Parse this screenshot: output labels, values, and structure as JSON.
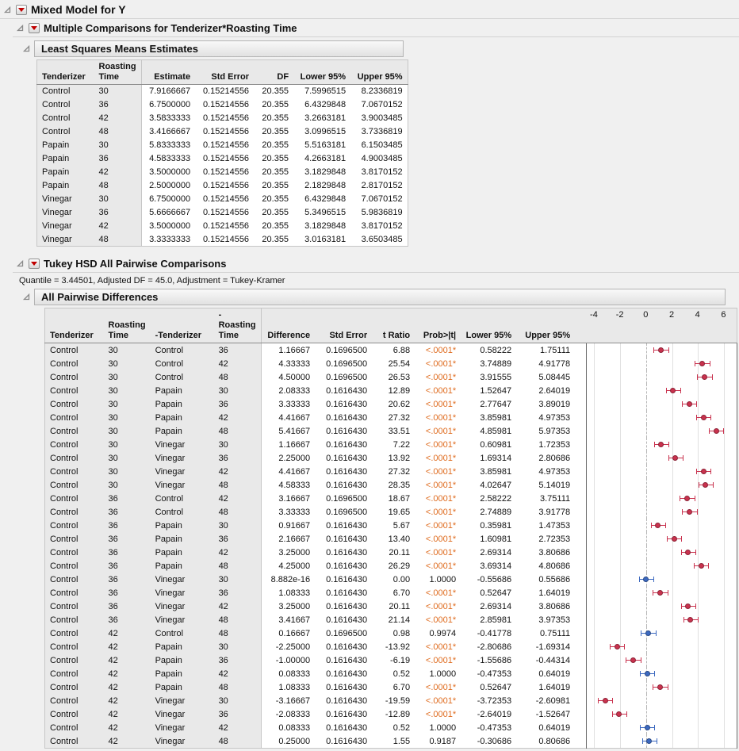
{
  "outline": {
    "mixed_model_title": "Mixed Model for Y",
    "multiple_comparisons_title": "Multiple Comparisons for Tenderizer*Roasting Time",
    "lsmeans_title": "Least Squares Means Estimates",
    "tukey_title": "Tukey HSD All Pairwise Comparisons",
    "tukey_note": "Quantile = 3.44501, Adjusted DF = 45.0, Adjustment = Tukey-Kramer",
    "pairwise_title": "All Pairwise Differences"
  },
  "colors": {
    "significant_ci": "#c9324e",
    "nonsignificant_ci": "#3c69c0",
    "significant_pvalue_text": "#df6b1e",
    "red_triangle": "#c00000",
    "header_bg": "#e9e9e9"
  },
  "lsmeans_table": {
    "headers": [
      "Tenderizer",
      "Roasting\nTime",
      "Estimate",
      "Std Error",
      "DF",
      "Lower 95%",
      "Upper 95%"
    ],
    "col_classes": [
      "lbl",
      "lbl",
      "num sep",
      "num",
      "num",
      "num",
      "num"
    ],
    "rows": [
      [
        "Control",
        "30",
        "7.9166667",
        "0.15214556",
        "20.355",
        "7.5996515",
        "8.2336819"
      ],
      [
        "Control",
        "36",
        "6.7500000",
        "0.15214556",
        "20.355",
        "6.4329848",
        "7.0670152"
      ],
      [
        "Control",
        "42",
        "3.5833333",
        "0.15214556",
        "20.355",
        "3.2663181",
        "3.9003485"
      ],
      [
        "Control",
        "48",
        "3.4166667",
        "0.15214556",
        "20.355",
        "3.0996515",
        "3.7336819"
      ],
      [
        "Papain",
        "30",
        "5.8333333",
        "0.15214556",
        "20.355",
        "5.5163181",
        "6.1503485"
      ],
      [
        "Papain",
        "36",
        "4.5833333",
        "0.15214556",
        "20.355",
        "4.2663181",
        "4.9003485"
      ],
      [
        "Papain",
        "42",
        "3.5000000",
        "0.15214556",
        "20.355",
        "3.1829848",
        "3.8170152"
      ],
      [
        "Papain",
        "48",
        "2.5000000",
        "0.15214556",
        "20.355",
        "2.1829848",
        "2.8170152"
      ],
      [
        "Vinegar",
        "30",
        "6.7500000",
        "0.15214556",
        "20.355",
        "6.4329848",
        "7.0670152"
      ],
      [
        "Vinegar",
        "36",
        "5.6666667",
        "0.15214556",
        "20.355",
        "5.3496515",
        "5.9836819"
      ],
      [
        "Vinegar",
        "42",
        "3.5000000",
        "0.15214556",
        "20.355",
        "3.1829848",
        "3.8170152"
      ],
      [
        "Vinegar",
        "48",
        "3.3333333",
        "0.15214556",
        "20.355",
        "3.0163181",
        "3.6503485"
      ]
    ]
  },
  "pairwise_table": {
    "headers": [
      "Tenderizer",
      "Roasting\nTime",
      "-Tenderizer",
      "-Roasting\nTime",
      "Difference",
      "Std Error",
      "t Ratio",
      "Prob>|t|",
      "Lower 95%",
      "Upper 95%"
    ],
    "col_classes": [
      "lbl",
      "lbl",
      "lbl",
      "lbl",
      "num sep",
      "num",
      "num",
      "num prob",
      "num",
      "num"
    ],
    "rows": [
      [
        "Control",
        "30",
        "Control",
        "36",
        "1.16667",
        "0.1696500",
        "6.88",
        "<.0001*",
        "0.58222",
        "1.75111"
      ],
      [
        "Control",
        "30",
        "Control",
        "42",
        "4.33333",
        "0.1696500",
        "25.54",
        "<.0001*",
        "3.74889",
        "4.91778"
      ],
      [
        "Control",
        "30",
        "Control",
        "48",
        "4.50000",
        "0.1696500",
        "26.53",
        "<.0001*",
        "3.91555",
        "5.08445"
      ],
      [
        "Control",
        "30",
        "Papain",
        "30",
        "2.08333",
        "0.1616430",
        "12.89",
        "<.0001*",
        "1.52647",
        "2.64019"
      ],
      [
        "Control",
        "30",
        "Papain",
        "36",
        "3.33333",
        "0.1616430",
        "20.62",
        "<.0001*",
        "2.77647",
        "3.89019"
      ],
      [
        "Control",
        "30",
        "Papain",
        "42",
        "4.41667",
        "0.1616430",
        "27.32",
        "<.0001*",
        "3.85981",
        "4.97353"
      ],
      [
        "Control",
        "30",
        "Papain",
        "48",
        "5.41667",
        "0.1616430",
        "33.51",
        "<.0001*",
        "4.85981",
        "5.97353"
      ],
      [
        "Control",
        "30",
        "Vinegar",
        "30",
        "1.16667",
        "0.1616430",
        "7.22",
        "<.0001*",
        "0.60981",
        "1.72353"
      ],
      [
        "Control",
        "30",
        "Vinegar",
        "36",
        "2.25000",
        "0.1616430",
        "13.92",
        "<.0001*",
        "1.69314",
        "2.80686"
      ],
      [
        "Control",
        "30",
        "Vinegar",
        "42",
        "4.41667",
        "0.1616430",
        "27.32",
        "<.0001*",
        "3.85981",
        "4.97353"
      ],
      [
        "Control",
        "30",
        "Vinegar",
        "48",
        "4.58333",
        "0.1616430",
        "28.35",
        "<.0001*",
        "4.02647",
        "5.14019"
      ],
      [
        "Control",
        "36",
        "Control",
        "42",
        "3.16667",
        "0.1696500",
        "18.67",
        "<.0001*",
        "2.58222",
        "3.75111"
      ],
      [
        "Control",
        "36",
        "Control",
        "48",
        "3.33333",
        "0.1696500",
        "19.65",
        "<.0001*",
        "2.74889",
        "3.91778"
      ],
      [
        "Control",
        "36",
        "Papain",
        "30",
        "0.91667",
        "0.1616430",
        "5.67",
        "<.0001*",
        "0.35981",
        "1.47353"
      ],
      [
        "Control",
        "36",
        "Papain",
        "36",
        "2.16667",
        "0.1616430",
        "13.40",
        "<.0001*",
        "1.60981",
        "2.72353"
      ],
      [
        "Control",
        "36",
        "Papain",
        "42",
        "3.25000",
        "0.1616430",
        "20.11",
        "<.0001*",
        "2.69314",
        "3.80686"
      ],
      [
        "Control",
        "36",
        "Papain",
        "48",
        "4.25000",
        "0.1616430",
        "26.29",
        "<.0001*",
        "3.69314",
        "4.80686"
      ],
      [
        "Control",
        "36",
        "Vinegar",
        "30",
        "8.882e-16",
        "0.1616430",
        "0.00",
        "1.0000",
        "-0.55686",
        "0.55686"
      ],
      [
        "Control",
        "36",
        "Vinegar",
        "36",
        "1.08333",
        "0.1616430",
        "6.70",
        "<.0001*",
        "0.52647",
        "1.64019"
      ],
      [
        "Control",
        "36",
        "Vinegar",
        "42",
        "3.25000",
        "0.1616430",
        "20.11",
        "<.0001*",
        "2.69314",
        "3.80686"
      ],
      [
        "Control",
        "36",
        "Vinegar",
        "48",
        "3.41667",
        "0.1616430",
        "21.14",
        "<.0001*",
        "2.85981",
        "3.97353"
      ],
      [
        "Control",
        "42",
        "Control",
        "48",
        "0.16667",
        "0.1696500",
        "0.98",
        "0.9974",
        "-0.41778",
        "0.75111"
      ],
      [
        "Control",
        "42",
        "Papain",
        "30",
        "-2.25000",
        "0.1616430",
        "-13.92",
        "<.0001*",
        "-2.80686",
        "-1.69314"
      ],
      [
        "Control",
        "42",
        "Papain",
        "36",
        "-1.00000",
        "0.1616430",
        "-6.19",
        "<.0001*",
        "-1.55686",
        "-0.44314"
      ],
      [
        "Control",
        "42",
        "Papain",
        "42",
        "0.08333",
        "0.1616430",
        "0.52",
        "1.0000",
        "-0.47353",
        "0.64019"
      ],
      [
        "Control",
        "42",
        "Papain",
        "48",
        "1.08333",
        "0.1616430",
        "6.70",
        "<.0001*",
        "0.52647",
        "1.64019"
      ],
      [
        "Control",
        "42",
        "Vinegar",
        "30",
        "-3.16667",
        "0.1616430",
        "-19.59",
        "<.0001*",
        "-3.72353",
        "-2.60981"
      ],
      [
        "Control",
        "42",
        "Vinegar",
        "36",
        "-2.08333",
        "0.1616430",
        "-12.89",
        "<.0001*",
        "-2.64019",
        "-1.52647"
      ],
      [
        "Control",
        "42",
        "Vinegar",
        "42",
        "0.08333",
        "0.1616430",
        "0.52",
        "1.0000",
        "-0.47353",
        "0.64019"
      ],
      [
        "Control",
        "42",
        "Vinegar",
        "48",
        "0.25000",
        "0.1616430",
        "1.55",
        "0.9187",
        "-0.30686",
        "0.80686"
      ]
    ]
  },
  "chart_data": {
    "type": "scatter",
    "description": "Horizontal 95% confidence interval bars for each pairwise difference; marker at Difference value; red = significant (Prob>|t| marked *), blue = not significant; dashed reference line at 0.",
    "x_ticks": [
      -4,
      -2,
      0,
      2,
      4,
      6
    ],
    "x_domain": [
      -4.6,
      6.9
    ],
    "points": {
      "difference": [
        1.16667,
        4.33333,
        4.5,
        2.08333,
        3.33333,
        4.41667,
        5.41667,
        1.16667,
        2.25,
        4.41667,
        4.58333,
        3.16667,
        3.33333,
        0.91667,
        2.16667,
        3.25,
        4.25,
        8.882e-16,
        1.08333,
        3.25,
        3.41667,
        0.16667,
        -2.25,
        -1.0,
        0.08333,
        1.08333,
        -3.16667,
        -2.08333,
        0.08333,
        0.25
      ],
      "lower_95": [
        0.58222,
        3.74889,
        3.91555,
        1.52647,
        2.77647,
        3.85981,
        4.85981,
        0.60981,
        1.69314,
        3.85981,
        4.02647,
        2.58222,
        2.74889,
        0.35981,
        1.60981,
        2.69314,
        3.69314,
        -0.55686,
        0.52647,
        2.69314,
        2.85981,
        -0.41778,
        -2.80686,
        -1.55686,
        -0.47353,
        0.52647,
        -3.72353,
        -2.64019,
        -0.47353,
        -0.30686
      ],
      "upper_95": [
        1.75111,
        4.91778,
        5.08445,
        2.64019,
        3.89019,
        4.97353,
        5.97353,
        1.72353,
        2.80686,
        4.97353,
        5.14019,
        3.75111,
        3.91778,
        1.47353,
        2.72353,
        3.80686,
        4.80686,
        0.55686,
        1.64019,
        3.80686,
        3.97353,
        0.75111,
        -1.69314,
        -0.44314,
        0.64019,
        1.64019,
        -2.60981,
        -1.52647,
        0.64019,
        0.80686
      ],
      "significant": [
        true,
        true,
        true,
        true,
        true,
        true,
        true,
        true,
        true,
        true,
        true,
        true,
        true,
        true,
        true,
        true,
        true,
        false,
        true,
        true,
        true,
        false,
        true,
        true,
        false,
        true,
        true,
        true,
        false,
        false
      ]
    }
  }
}
